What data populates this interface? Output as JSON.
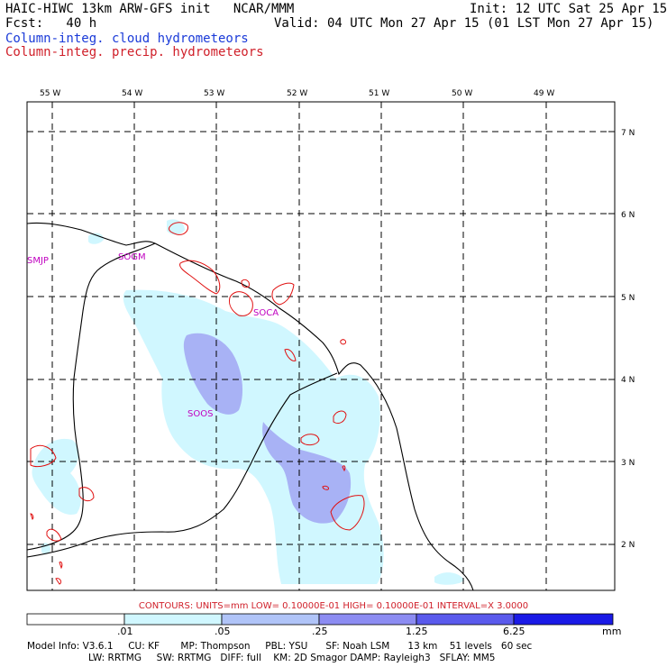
{
  "header": {
    "title": "HAIC-HIWC 13km ARW-GFS init   NCAR/MMM",
    "init": "Init: 12 UTC Sat 25 Apr 15",
    "fcst": "Fcst:   40 h",
    "valid": "Valid: 04 UTC Mon 27 Apr 15 (01 LST Mon 27 Apr 15)",
    "cloud_legend": "Column-integ. cloud hydrometeors",
    "precip_legend": "Column-integ. precip. hydrometeors"
  },
  "map": {
    "lon_labels": [
      "55 W",
      "54 W",
      "53 W",
      "52 W",
      "51 W",
      "50 W",
      "49 W"
    ],
    "lat_labels": [
      "7 N",
      "6 N",
      "5 N",
      "4 N",
      "3 N",
      "2 N"
    ],
    "stations": [
      "SMJP",
      "SOGM",
      "SOCA",
      "SOOS"
    ]
  },
  "contour_note": "CONTOURS:  UNITS=mm   LOW= 0.10000E-01   HIGH= 0.10000E-01   INTERVAL=X   3.0000",
  "colorbar": {
    "ticks": [
      ".01",
      ".05",
      ".25",
      "1.25",
      "6.25"
    ],
    "units": "mm",
    "colors": [
      "#ffffff",
      "#d0f7ff",
      "#b0c4f8",
      "#8c8cf2",
      "#5a5aec",
      "#1a1ae6"
    ]
  },
  "model_info": {
    "line1": "Model Info: V3.6.1     CU: KF       MP: Thompson     PBL: YSU      SF: Noah LSM      13 km    51 levels   60 sec",
    "line2": "LW: RRTMG     SW: RRTMG   DIFF: full    KM: 2D Smagor DAMP: Rayleigh3   SFLAY: MM5"
  }
}
